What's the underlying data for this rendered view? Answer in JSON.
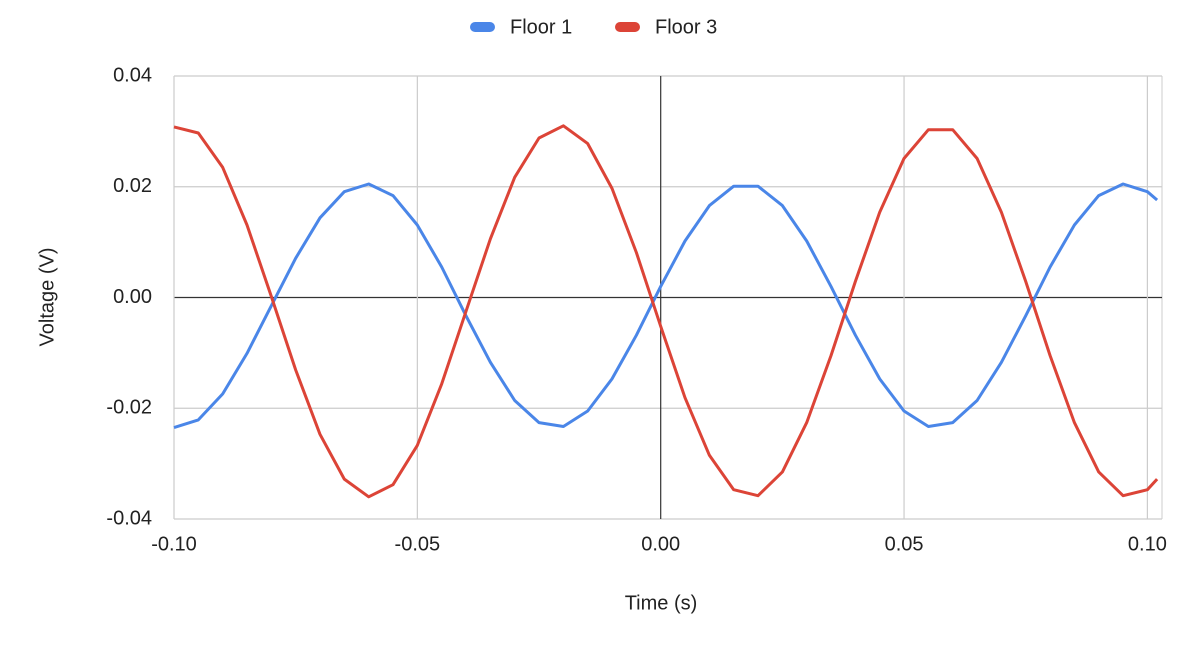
{
  "chart_data": {
    "type": "line",
    "xlabel": "Time (s)",
    "ylabel": "Voltage (V)",
    "x": [
      -0.1,
      -0.095,
      -0.09,
      -0.085,
      -0.08,
      -0.075,
      -0.07,
      -0.065,
      -0.06,
      -0.055,
      -0.05,
      -0.045,
      -0.04,
      -0.035,
      -0.03,
      -0.025,
      -0.02,
      -0.015,
      -0.01,
      -0.005,
      0,
      0.005,
      0.01,
      0.015,
      0.02,
      0.025,
      0.03,
      0.035,
      0.04,
      0.045,
      0.05,
      0.055,
      0.06,
      0.065,
      0.07,
      0.075,
      0.08,
      0.085,
      0.09,
      0.095,
      0.1,
      0.102
    ],
    "series": [
      {
        "name": "Floor 1",
        "color": "#4a86e8",
        "values": [
          -0.0235,
          -0.0221,
          -0.0174,
          -0.0101,
          -0.0015,
          0.0071,
          0.0144,
          0.0191,
          0.0205,
          0.0184,
          0.0131,
          0.0055,
          -0.0033,
          -0.0117,
          -0.0186,
          -0.0226,
          -0.0233,
          -0.0205,
          -0.0147,
          -0.0068,
          0.002,
          0.0102,
          0.0166,
          0.0201,
          0.0201,
          0.0166,
          0.0102,
          0.002,
          -0.0068,
          -0.0147,
          -0.0205,
          -0.0233,
          -0.0226,
          -0.0186,
          -0.0117,
          -0.0033,
          0.0055,
          0.0131,
          0.0184,
          0.0205,
          0.0191,
          0.0176
        ]
      },
      {
        "name": "Floor 3",
        "color": "#dc4437",
        "values": [
          0.0308,
          0.0297,
          0.0235,
          0.0131,
          0.0002,
          -0.0131,
          -0.0247,
          -0.0328,
          -0.036,
          -0.0338,
          -0.0267,
          -0.0156,
          -0.0025,
          0.0106,
          0.0217,
          0.0288,
          0.031,
          0.0278,
          0.0197,
          0.0081,
          -0.0052,
          -0.0181,
          -0.0285,
          -0.0347,
          -0.0358,
          -0.0315,
          -0.0226,
          -0.0105,
          0.0029,
          0.0154,
          0.0251,
          0.0303,
          0.0303,
          0.0251,
          0.0154,
          0.0029,
          -0.0105,
          -0.0226,
          -0.0315,
          -0.0358,
          -0.0347,
          -0.0328
        ]
      }
    ],
    "xlim": [
      -0.1,
      0.103
    ],
    "xticks": [
      {
        "value": -0.1,
        "label": "-0.10"
      },
      -0.05,
      {
        "value": 0,
        "label": "0.00"
      },
      0.05,
      {
        "value": 0.1,
        "label": "0.10"
      }
    ],
    "ylim": [
      -0.04,
      0.04
    ],
    "yticks": [
      -0.04,
      -0.02,
      {
        "value": 0,
        "label": "0.00"
      },
      0.02,
      0.04
    ],
    "grid": true,
    "legend": "top"
  }
}
